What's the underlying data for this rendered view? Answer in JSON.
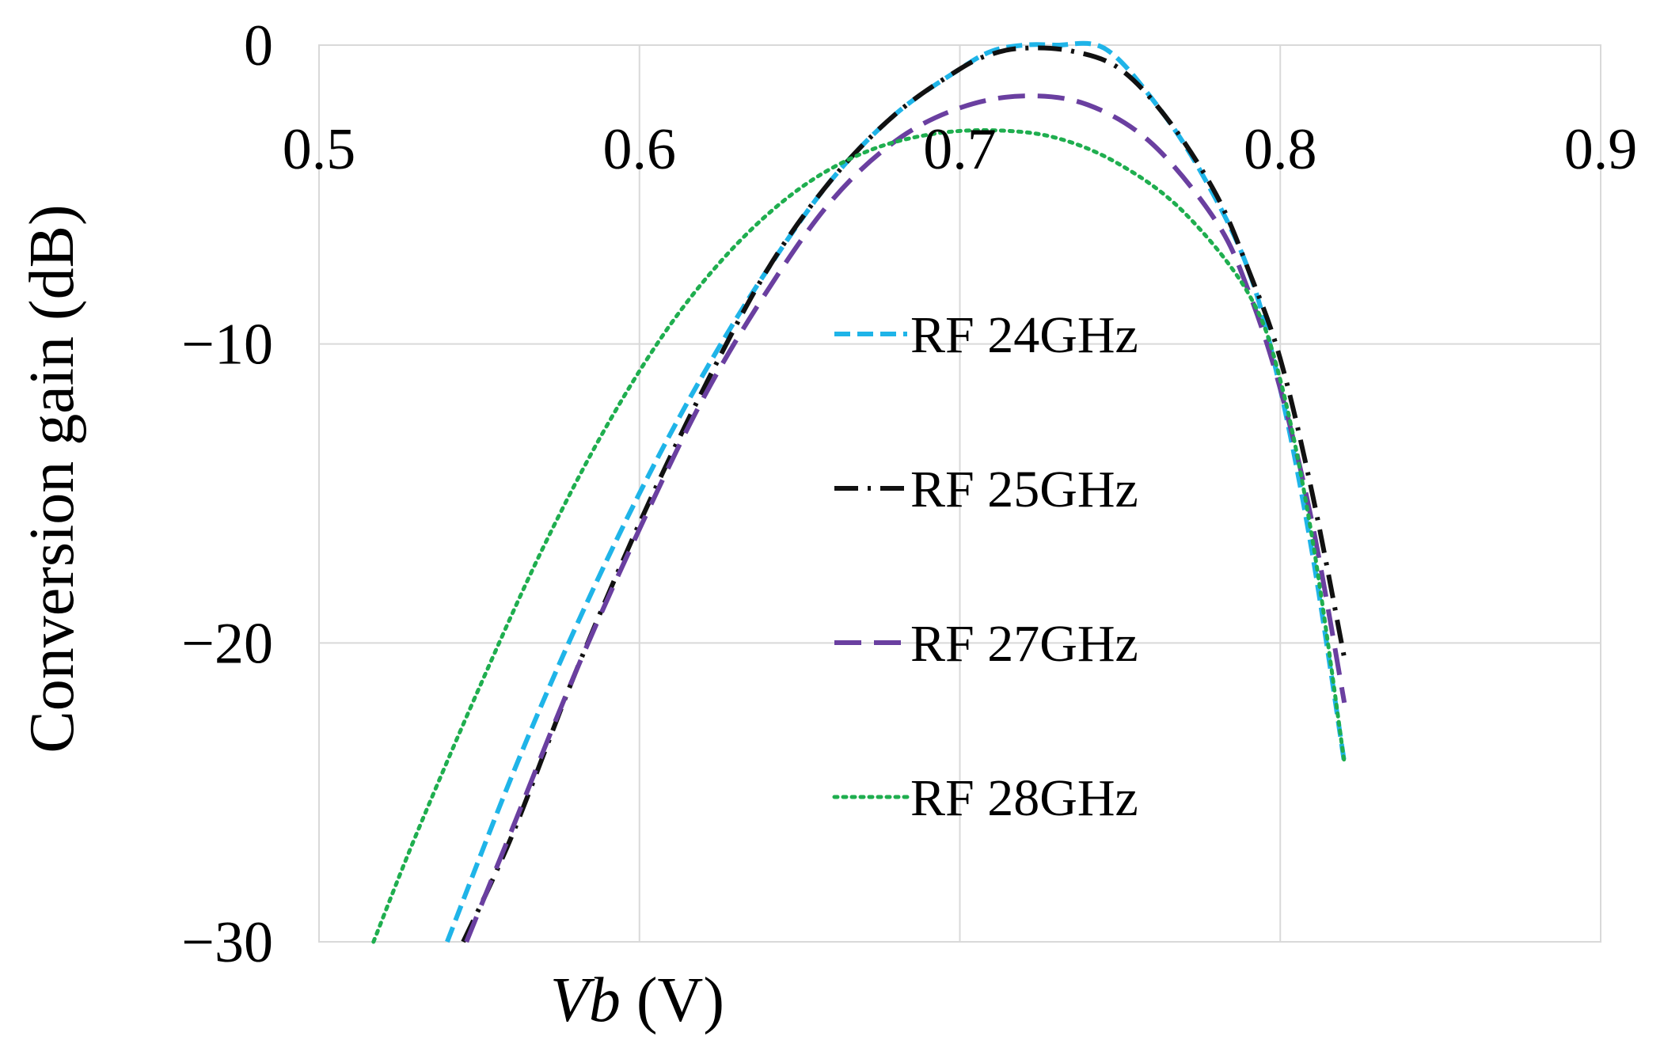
{
  "chart_data": {
    "type": "line",
    "title": "",
    "xlabel_var": "Vb",
    "xlabel_unit": " (V)",
    "ylabel": "Conversion gain (dB)",
    "xlim": [
      0.5,
      0.9
    ],
    "ylim": [
      -30,
      0
    ],
    "grid": true,
    "legend_position": "center",
    "x_ticks": [
      {
        "value": 0.5,
        "label": "0.5"
      },
      {
        "value": 0.6,
        "label": "0.6"
      },
      {
        "value": 0.7,
        "label": "0.7"
      },
      {
        "value": 0.8,
        "label": "0.8"
      },
      {
        "value": 0.9,
        "label": "0.9"
      }
    ],
    "y_ticks": [
      {
        "value": 0,
        "label": "0"
      },
      {
        "value": -10,
        "label": "−10"
      },
      {
        "value": -20,
        "label": "−20"
      },
      {
        "value": -30,
        "label": "−30"
      }
    ],
    "series": [
      {
        "name": "RF 24GHz",
        "color": "#1fb4e8",
        "style": "short-dash",
        "x": [
          0.54,
          0.56,
          0.58,
          0.6,
          0.62,
          0.64,
          0.66,
          0.68,
          0.7,
          0.71,
          0.72,
          0.73,
          0.745,
          0.76,
          0.775,
          0.79,
          0.8,
          0.81,
          0.82
        ],
        "y": [
          -30,
          -24.5,
          -19.5,
          -15,
          -11,
          -7.5,
          -4.5,
          -2.3,
          -0.8,
          -0.2,
          0,
          0,
          -0.1,
          -1.8,
          -4.2,
          -7.5,
          -11.5,
          -17,
          -24
        ]
      },
      {
        "name": "RF 25GHz",
        "color": "#111111",
        "style": "dash-dot",
        "x": [
          0.545,
          0.56,
          0.58,
          0.6,
          0.62,
          0.64,
          0.66,
          0.68,
          0.7,
          0.71,
          0.72,
          0.735,
          0.75,
          0.765,
          0.78,
          0.79,
          0.8,
          0.81,
          0.82
        ],
        "y": [
          -30,
          -26.5,
          -21,
          -16,
          -11.5,
          -7.5,
          -4.5,
          -2.3,
          -0.8,
          -0.3,
          -0.1,
          -0.2,
          -0.8,
          -2.5,
          -5,
          -7.5,
          -10.5,
          -15,
          -20.5
        ]
      },
      {
        "name": "RF 27GHz",
        "color": "#6a3fa0",
        "style": "long-dash",
        "x": [
          0.546,
          0.56,
          0.58,
          0.6,
          0.62,
          0.64,
          0.66,
          0.68,
          0.7,
          0.72,
          0.74,
          0.76,
          0.78,
          0.79,
          0.8,
          0.81,
          0.82
        ],
        "y": [
          -30,
          -26.3,
          -21,
          -16.2,
          -11.8,
          -8.2,
          -5.2,
          -3.2,
          -2.1,
          -1.7,
          -2.0,
          -3.3,
          -5.9,
          -8.2,
          -11.5,
          -16,
          -22
        ]
      },
      {
        "name": "RF 28GHz",
        "color": "#1fae4f",
        "style": "dotted",
        "x": [
          0.517,
          0.53,
          0.55,
          0.57,
          0.59,
          0.61,
          0.63,
          0.65,
          0.67,
          0.69,
          0.71,
          0.73,
          0.75,
          0.77,
          0.79,
          0.8,
          0.81,
          0.82
        ],
        "y": [
          -30,
          -26.5,
          -21.5,
          -16.8,
          -12.7,
          -9.3,
          -6.7,
          -4.8,
          -3.6,
          -3.0,
          -2.85,
          -3.1,
          -4.0,
          -5.6,
          -8.3,
          -11.2,
          -16.5,
          -24
        ]
      }
    ]
  }
}
